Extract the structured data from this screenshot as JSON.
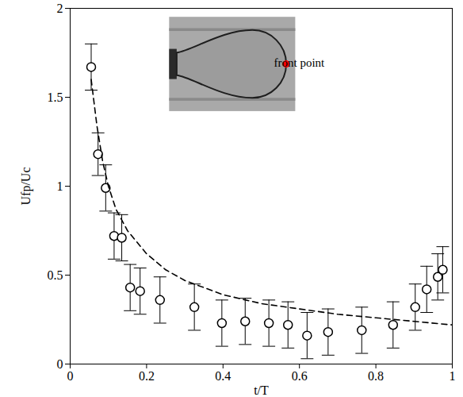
{
  "chart_data": {
    "type": "scatter",
    "x_label": "t/T",
    "y_label": "Ufp/Uc",
    "annotation": "front point",
    "xlim": [
      0,
      1
    ],
    "ylim": [
      0,
      2
    ],
    "xticks": [
      0,
      0.2,
      0.4,
      0.6,
      0.8,
      1
    ],
    "yticks": [
      0,
      0.5,
      1,
      1.5,
      2
    ],
    "series": [
      {
        "type": "scatter",
        "marker": "circle",
        "color": "#000000",
        "x": [
          0.055,
          0.073,
          0.093,
          0.115,
          0.135,
          0.157,
          0.183,
          0.235,
          0.325,
          0.397,
          0.458,
          0.52,
          0.57,
          0.62,
          0.675,
          0.763,
          0.845,
          0.903,
          0.933,
          0.962,
          0.975
        ],
        "values": [
          1.67,
          1.18,
          0.99,
          0.72,
          0.71,
          0.43,
          0.41,
          0.36,
          0.32,
          0.23,
          0.24,
          0.23,
          0.22,
          0.16,
          0.18,
          0.19,
          0.22,
          0.32,
          0.42,
          0.49,
          0.53
        ],
        "errors": [
          0.13,
          0.12,
          0.13,
          0.13,
          0.13,
          0.13,
          0.13,
          0.13,
          0.13,
          0.13,
          0.13,
          0.13,
          0.13,
          0.13,
          0.13,
          0.13,
          0.13,
          0.13,
          0.13,
          0.13,
          0.13
        ]
      },
      {
        "type": "line",
        "line_style": "dashed",
        "color": "#000000",
        "x": [
          0.055,
          0.07,
          0.085,
          0.1,
          0.12,
          0.15,
          0.2,
          0.25,
          0.3,
          0.4,
          0.5,
          0.6,
          0.7,
          0.8,
          0.9,
          1
        ],
        "values": [
          1.6,
          1.34,
          1.14,
          1.0,
          0.87,
          0.75,
          0.62,
          0.53,
          0.47,
          0.39,
          0.34,
          0.31,
          0.28,
          0.26,
          0.24,
          0.22
        ]
      }
    ]
  }
}
